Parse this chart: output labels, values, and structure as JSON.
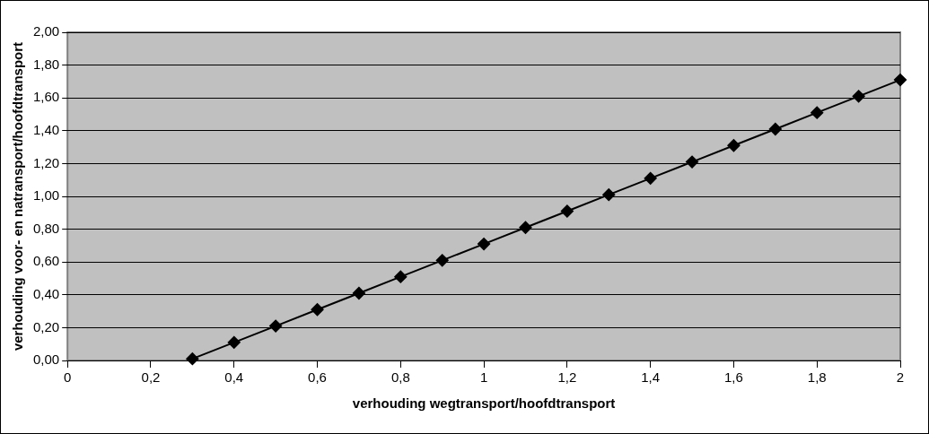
{
  "chart_data": {
    "type": "line",
    "xlabel": "verhouding wegtransport/hoofdtransport",
    "ylabel": "verhouding voor- en natransport/hoofdtransport",
    "x": [
      0.3,
      0.4,
      0.5,
      0.6,
      0.7,
      0.8,
      0.9,
      1.0,
      1.1,
      1.2,
      1.3,
      1.4,
      1.5,
      1.6,
      1.7,
      1.8,
      1.9,
      2.0
    ],
    "series": [
      {
        "color": "#000000",
        "values": [
          0.01,
          0.11,
          0.21,
          0.31,
          0.41,
          0.51,
          0.61,
          0.71,
          0.81,
          0.91,
          1.01,
          1.11,
          1.21,
          1.31,
          1.41,
          1.51,
          1.61,
          1.71
        ]
      }
    ],
    "xlim": [
      0,
      2
    ],
    "xticks": [
      0,
      {
        "value": 0.2,
        "label": "0,2"
      },
      {
        "value": 0.4,
        "label": "0,4"
      },
      {
        "value": 0.6,
        "label": "0,6"
      },
      {
        "value": 0.8,
        "label": "0,8"
      },
      1,
      {
        "value": 1.2,
        "label": "1,2"
      },
      {
        "value": 1.4,
        "label": "1,4"
      },
      {
        "value": 1.6,
        "label": "1,6"
      },
      {
        "value": 1.8,
        "label": "1,8"
      },
      2
    ],
    "ylim": [
      0,
      2
    ],
    "yticks": [
      {
        "value": 0,
        "label": "0,00"
      },
      {
        "value": 0.2,
        "label": "0,20"
      },
      {
        "value": 0.4,
        "label": "0,40"
      },
      {
        "value": 0.6,
        "label": "0,60"
      },
      {
        "value": 0.8,
        "label": "0,80"
      },
      {
        "value": 1,
        "label": "1,00"
      },
      {
        "value": 1.2,
        "label": "1,20"
      },
      {
        "value": 1.4,
        "label": "1,40"
      },
      {
        "value": 1.6,
        "label": "1,60"
      },
      {
        "value": 1.8,
        "label": "1,80"
      },
      {
        "value": 2,
        "label": "2,00"
      }
    ],
    "grid": "y",
    "legend": false,
    "marker": "diamond",
    "line_style": "solid"
  }
}
